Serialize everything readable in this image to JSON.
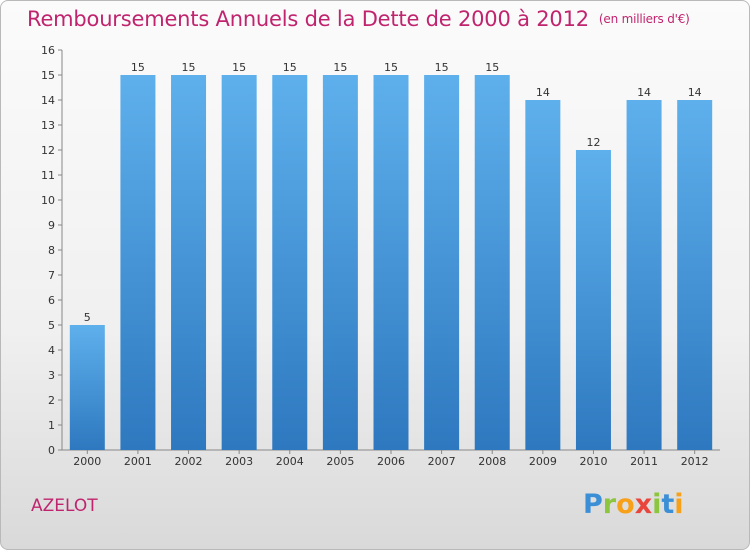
{
  "chart_data": {
    "type": "bar",
    "title": "Remboursements Annuels de la Dette de 2000 à 2012",
    "unit": "(en milliers d'€)",
    "categories": [
      "2000",
      "2001",
      "2002",
      "2003",
      "2004",
      "2005",
      "2006",
      "2007",
      "2008",
      "2009",
      "2010",
      "2011",
      "2012"
    ],
    "values": [
      5,
      15,
      15,
      15,
      15,
      15,
      15,
      15,
      15,
      14,
      12,
      14,
      14
    ],
    "ylim": [
      0,
      16
    ],
    "yticks": [
      0,
      1,
      2,
      3,
      4,
      5,
      6,
      7,
      8,
      9,
      10,
      11,
      12,
      13,
      14,
      15,
      16
    ],
    "grid": false,
    "bar_color": "#4f9fde",
    "title_color": "#c0246e"
  },
  "commune": "AZELOT",
  "logo": {
    "letters": [
      "P",
      "r",
      "o",
      "x",
      "i",
      "t",
      "i"
    ],
    "colors": [
      "#3a8fd6",
      "#8cc63f",
      "#f7a11a",
      "#e8453c",
      "#8cc63f",
      "#3a8fd6",
      "#f7a11a"
    ]
  }
}
